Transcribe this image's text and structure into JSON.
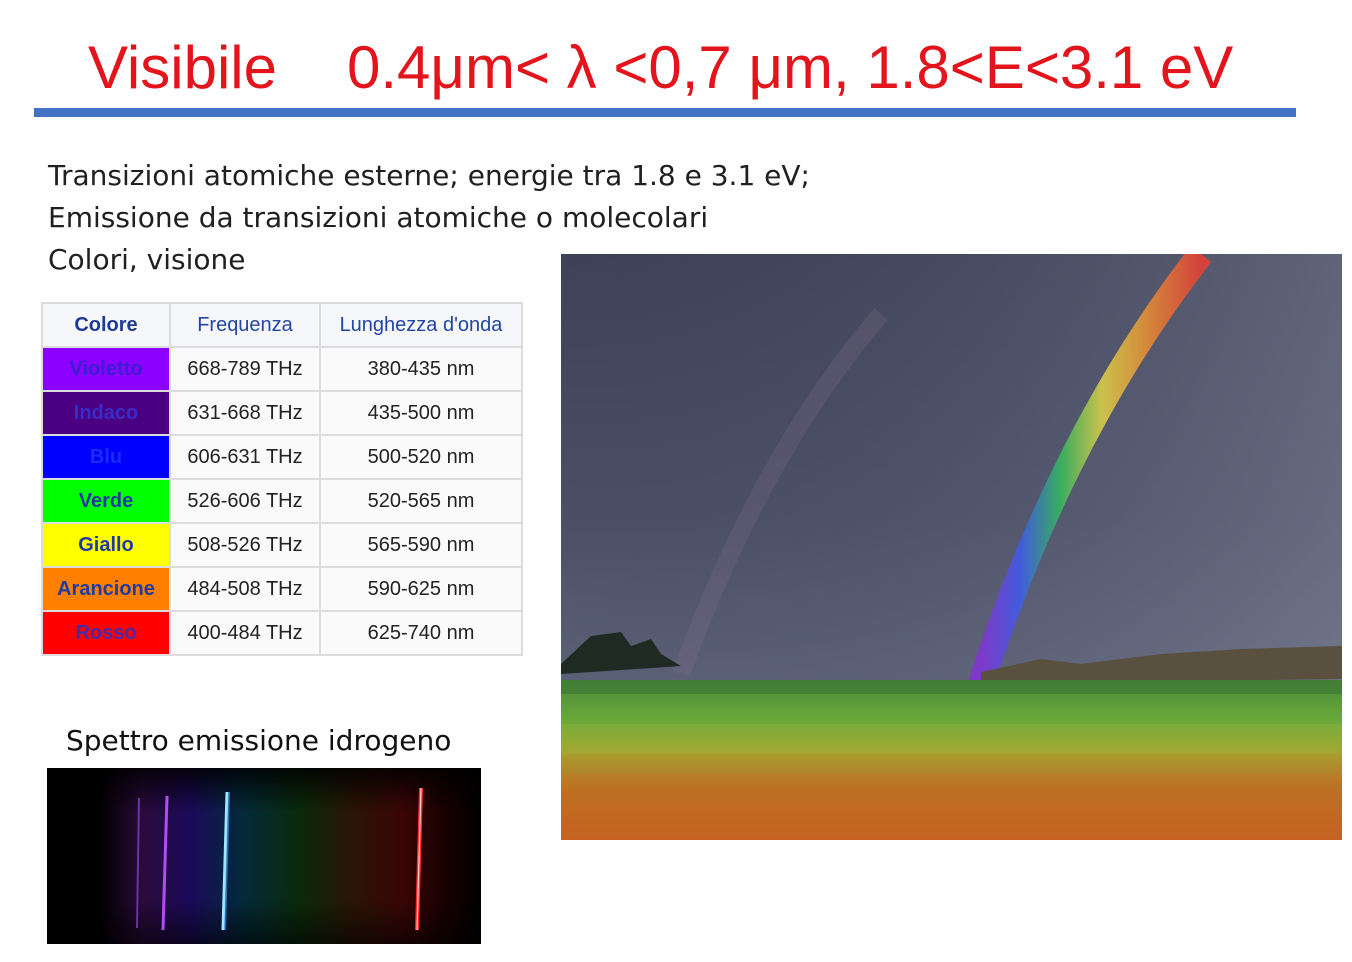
{
  "title": {
    "word": "Visibile",
    "range": "0.4μm< λ <0,7 μm, 1.8<E<3.1 eV"
  },
  "bullets": [
    "Transizioni atomiche esterne; energie tra 1.8 e 3.1 eV;",
    "Emissione da transizioni atomiche o molecolari",
    "Colori, visione"
  ],
  "table": {
    "headers": [
      "Colore",
      "Frequenza",
      "Lunghezza d'onda"
    ],
    "rows": [
      {
        "name": "Violetto",
        "freq": "668-789 THz",
        "wave": "380-435 nm",
        "bg": "#8b00ff",
        "fg": "#3b1fd0"
      },
      {
        "name": "Indaco",
        "freq": "631-668 THz",
        "wave": "435-500 nm",
        "bg": "#4b0082",
        "fg": "#3a2cc9"
      },
      {
        "name": "Blu",
        "freq": "606-631 THz",
        "wave": "500-520 nm",
        "bg": "#0000ff",
        "fg": "#1a2cff"
      },
      {
        "name": "Verde",
        "freq": "526-606 THz",
        "wave": "520-565 nm",
        "bg": "#00ff00",
        "fg": "#1f3aa0"
      },
      {
        "name": "Giallo",
        "freq": "508-526 THz",
        "wave": "565-590 nm",
        "bg": "#ffff00",
        "fg": "#1f3aa0"
      },
      {
        "name": "Arancione",
        "freq": "484-508 THz",
        "wave": "590-625 nm",
        "bg": "#ff7f00",
        "fg": "#1f3aa0"
      },
      {
        "name": "Rosso",
        "freq": "400-484 THz",
        "wave": "625-740 nm",
        "bg": "#ff0000",
        "fg": "#4a2aa8"
      }
    ]
  },
  "spectrum": {
    "label": "Spettro emissione idrogeno"
  },
  "colors": {
    "title": "#e3141c",
    "rule": "#4472c4"
  }
}
